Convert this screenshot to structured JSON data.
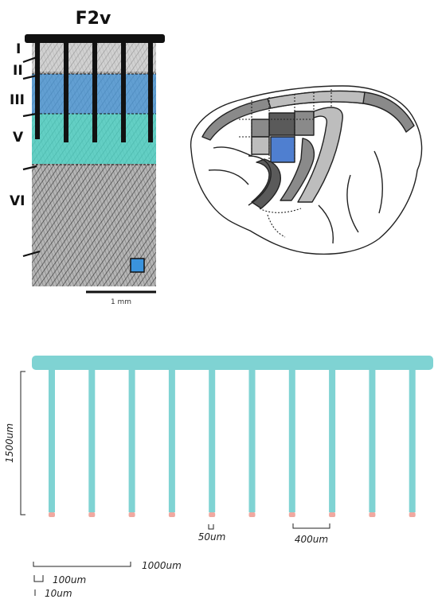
{
  "panel_a": {
    "title": "F2v",
    "layers": [
      "I",
      "II",
      "III",
      "V",
      "VI"
    ],
    "scale_bar": "1 mm",
    "colors": {
      "layer_iii": "#4f9ad8",
      "layer_v": "#4fd6c8",
      "tissue": "#9a9a9a",
      "marker": "#3a93dd"
    }
  },
  "panel_b": {
    "colors": {
      "outline": "#222222",
      "highlight": "#4f7fd0",
      "dark_area": "#5a5a5a",
      "mid_area": "#8a8a8a",
      "light_area": "#bdbdbd"
    }
  },
  "panel_c": {
    "depth_label": "1500um",
    "shank_width_label": "50um",
    "pitch_label": "400um",
    "scale_1000": "1000um",
    "scale_100": "100um",
    "scale_10": "10um",
    "shank_count": 10,
    "colors": {
      "probe": "#7fd3d3",
      "tip": "#f0a8a0"
    }
  }
}
